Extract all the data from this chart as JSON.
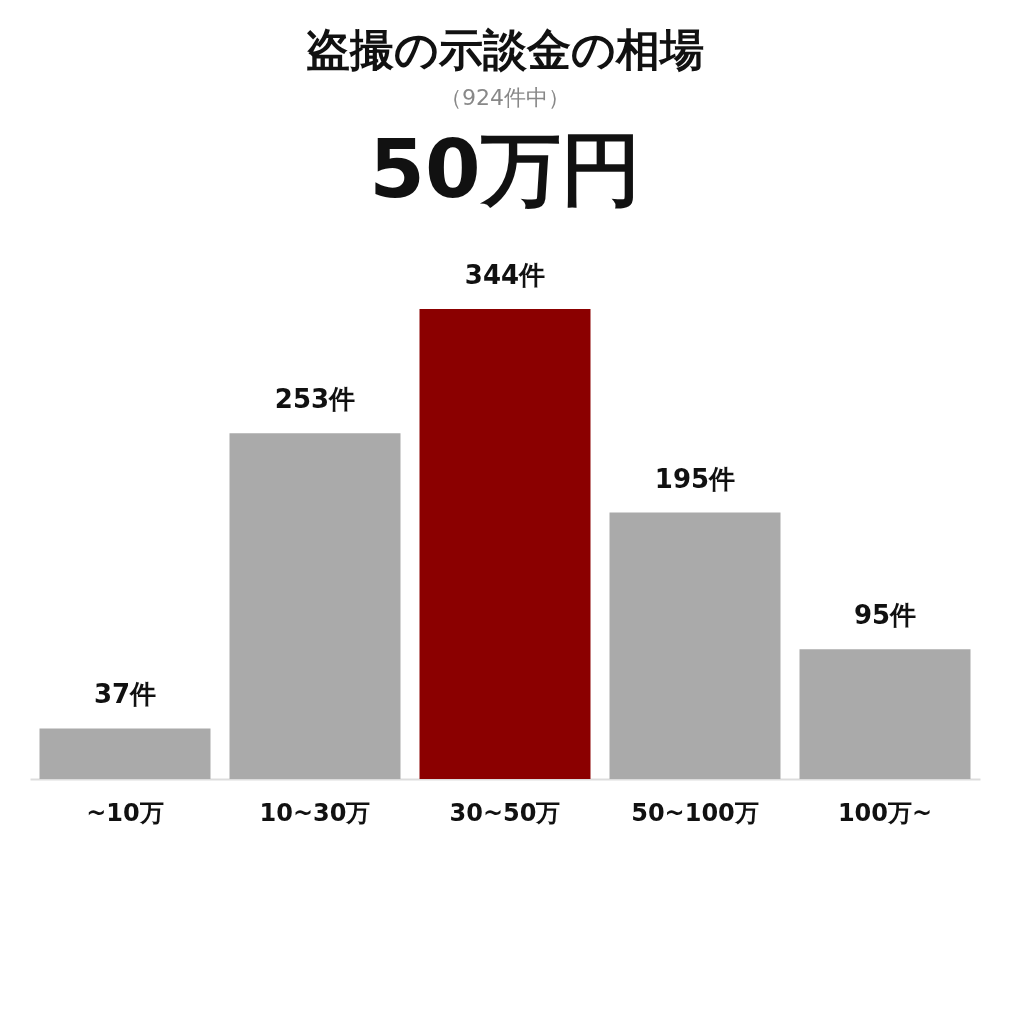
{
  "chart_data": {
    "type": "bar",
    "title": "盗撮の示談金の相場",
    "subtitle": "（924件中）",
    "annotations": [
      "50万円"
    ],
    "categories": [
      "~10万",
      "10~30万",
      "30~50万",
      "50~100万",
      "100万~"
    ],
    "values": [
      37,
      253,
      344,
      195,
      95
    ],
    "value_labels": [
      "37件",
      "253件",
      "344件",
      "195件",
      "95件"
    ],
    "colors": [
      "#aaaaaa",
      "#aaaaaa",
      "#8b0000",
      "#aaaaaa",
      "#aaaaaa"
    ],
    "grid": false
  }
}
